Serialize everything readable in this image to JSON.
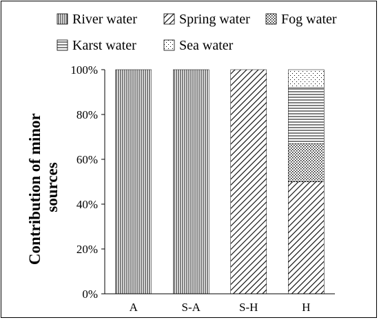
{
  "chart_data": {
    "type": "bar",
    "stacked": true,
    "title": "",
    "xlabel": "",
    "ylabel": "Contribution of minor sources",
    "ylabel_lines": [
      "Contribution of minor",
      "sources"
    ],
    "ylim": [
      0,
      100
    ],
    "y_ticks": [
      "0%",
      "20%",
      "40%",
      "60%",
      "80%",
      "100%"
    ],
    "categories": [
      "A",
      "S-A",
      "S-H",
      "H"
    ],
    "series": [
      {
        "name": "River water",
        "pattern": "vertical-lines",
        "values": [
          100,
          100,
          0,
          0
        ]
      },
      {
        "name": "Spring water",
        "pattern": "diagonal-lines",
        "values": [
          0,
          0,
          100,
          50
        ]
      },
      {
        "name": "Fog water",
        "pattern": "dense-dots",
        "values": [
          0,
          0,
          0,
          17
        ]
      },
      {
        "name": "Karst water",
        "pattern": "horizontal-lines",
        "values": [
          0,
          0,
          0,
          25
        ]
      },
      {
        "name": "Sea water",
        "pattern": "sparse-dots",
        "values": [
          0,
          0,
          0,
          8
        ]
      }
    ],
    "legend_position": "top",
    "grid": false
  }
}
